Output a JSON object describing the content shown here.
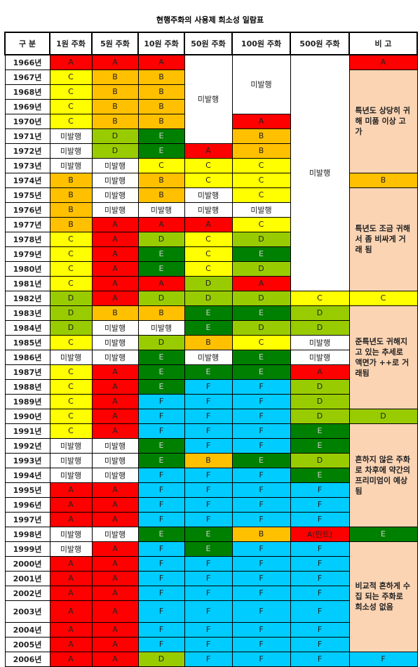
{
  "title": "현행주화의 사용제 희소성 일람표",
  "header": [
    "구 분",
    "1원 주화",
    "5원 주화",
    "10원 주화",
    "50원 주화",
    "100원 주화",
    "500원 주화",
    "비 고"
  ],
  "colors": {
    "A": "#ff0000",
    "B": "#ffc000",
    "C": "#ffff00",
    "D": "#99cc00",
    "E": "#008000",
    "F": "#00ccff"
  },
  "note_color": "#fbd4b4",
  "rows": [
    [
      "1966년",
      "A",
      "A",
      "A",
      "미발행",
      "미발행",
      "미발행",
      "A"
    ],
    [
      "1967년",
      "C",
      "B",
      "B",
      "특년도 상당히 귀해 미품 이상 고가"
    ],
    [
      "1968년",
      "C",
      "B",
      "B"
    ],
    [
      "1969년",
      "C",
      "B",
      "B"
    ],
    [
      "1970년",
      "C",
      "B",
      "B",
      "A"
    ],
    [
      "1971년",
      "미발행",
      "D",
      "E",
      "B"
    ],
    [
      "1972년",
      "미발행",
      "D",
      "E",
      "A",
      "B"
    ],
    [
      "1973년",
      "미발행",
      "미발행",
      "C",
      "C",
      "C"
    ],
    [
      "1974년",
      "B",
      "미발행",
      "B",
      "C",
      "C",
      "B"
    ],
    [
      "1975년",
      "B",
      "미발행",
      "B",
      "미발행",
      "C",
      "특년도 조금 귀해서 좀 비싸게 거래 됨"
    ],
    [
      "1976년",
      "B",
      "미발행",
      "미발행",
      "미발행",
      "미발행"
    ],
    [
      "1977년",
      "B",
      "A",
      "A",
      "A",
      "C"
    ],
    [
      "1978년",
      "C",
      "A",
      "D",
      "C",
      "D"
    ],
    [
      "1979년",
      "C",
      "A",
      "E",
      "C",
      "E"
    ],
    [
      "1980년",
      "C",
      "A",
      "E",
      "C",
      "D"
    ],
    [
      "1981년",
      "C",
      "A",
      "A",
      "D",
      "A"
    ],
    [
      "1982년",
      "D",
      "A",
      "D",
      "D",
      "D",
      "C",
      "C"
    ],
    [
      "1983년",
      "D",
      "B",
      "B",
      "E",
      "E",
      "D",
      "준특년도 귀해지고 있는 추세로 액면가 ++로 거래됨"
    ],
    [
      "1984년",
      "D",
      "미발행",
      "미발행",
      "E",
      "D",
      "D"
    ],
    [
      "1985년",
      "C",
      "미발행",
      "D",
      "B",
      "C",
      "미발행"
    ],
    [
      "1986년",
      "미발행",
      "미발행",
      "E",
      "미발행",
      "E",
      "미발행"
    ],
    [
      "1987년",
      "C",
      "A",
      "E",
      "E",
      "E",
      "A"
    ],
    [
      "1988년",
      "C",
      "A",
      "E",
      "F",
      "F",
      "D"
    ],
    [
      "1989년",
      "C",
      "A",
      "F",
      "F",
      "F",
      "D"
    ],
    [
      "1990년",
      "C",
      "A",
      "F",
      "F",
      "F",
      "D",
      "D"
    ],
    [
      "1991년",
      "C",
      "A",
      "F",
      "F",
      "F",
      "E",
      "흔하지 않은 주화로 차후에 약간의 프리미엄이 예상 됨"
    ],
    [
      "1992년",
      "미발행",
      "미발행",
      "E",
      "F",
      "F",
      "E"
    ],
    [
      "1993년",
      "미발행",
      "미발행",
      "E",
      "B",
      "E",
      "D"
    ],
    [
      "1994년",
      "미발행",
      "미발행",
      "F",
      "F",
      "F",
      "E"
    ],
    [
      "1995년",
      "A",
      "A",
      "F",
      "F",
      "F",
      "F"
    ],
    [
      "1996년",
      "A",
      "A",
      "F",
      "F",
      "F",
      "F"
    ],
    [
      "1997년",
      "A",
      "A",
      "F",
      "F",
      "F",
      "F"
    ],
    [
      "1998년",
      "미발행",
      "미발행",
      "E",
      "E",
      "B",
      "A(민트)",
      "E"
    ],
    [
      "1999년",
      "미발행",
      "A",
      "F",
      "E",
      "F",
      "F",
      "비교적 흔하게 수집 되는 주화로 희소성 없음"
    ],
    [
      "2000년",
      "A",
      "A",
      "F",
      "F",
      "F",
      "F"
    ],
    [
      "2001년",
      "A",
      "A",
      "F",
      "F",
      "F",
      "F"
    ],
    [
      "2002년",
      "A",
      "A",
      "F",
      "F",
      "F",
      "F"
    ],
    [
      "2003년",
      "A",
      "A",
      "F",
      "F",
      "F",
      "F"
    ],
    [
      "2004년",
      "A",
      "A",
      "F",
      "F",
      "F",
      "F"
    ],
    [
      "2005년",
      "A",
      "A",
      "F",
      "F",
      "F",
      "F"
    ],
    [
      "2006년",
      "A",
      "A",
      "D",
      "F",
      "F",
      "F",
      "F"
    ]
  ]
}
